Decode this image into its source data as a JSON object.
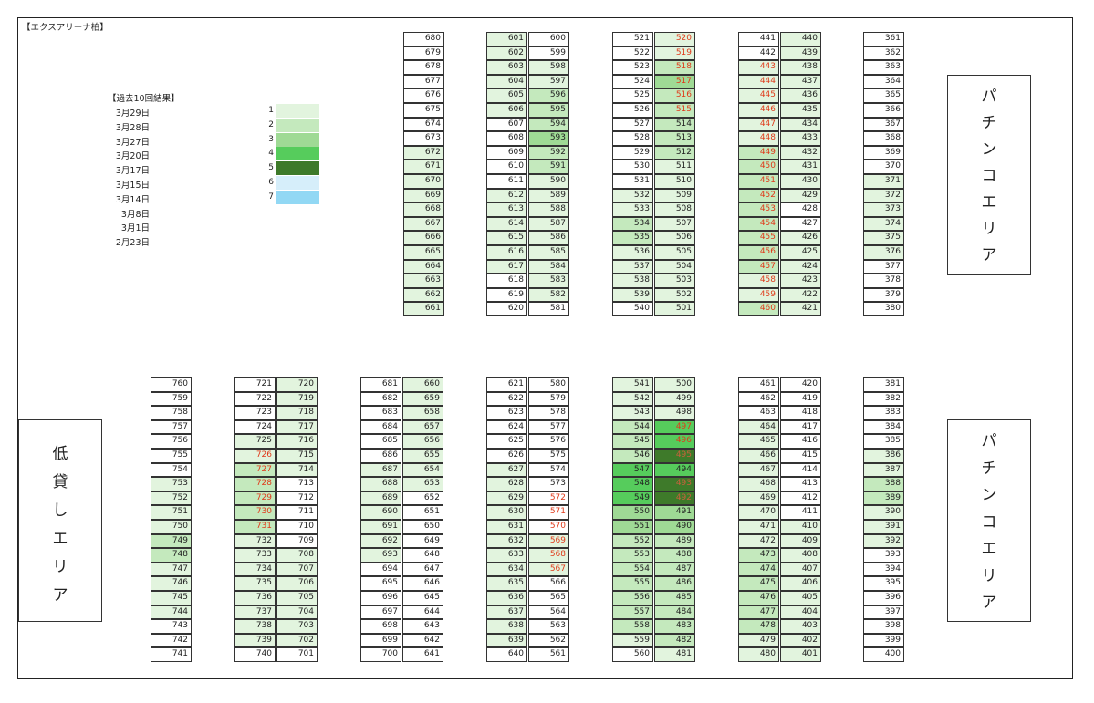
{
  "title": "【エクスアリーナ柏】",
  "legend": {
    "title": "【過去10回結果】",
    "dates": [
      "3月29日",
      "3月28日",
      "3月27日",
      "3月20日",
      "3月17日",
      "3月15日",
      "3月14日",
      "3月8日",
      "3月1日",
      "2月23日"
    ],
    "levels": [
      {
        "num": "1",
        "color": "#e2f4de"
      },
      {
        "num": "2",
        "color": "#c4e9bd"
      },
      {
        "num": "3",
        "color": "#9fda95"
      },
      {
        "num": "4",
        "color": "#56cc5c"
      },
      {
        "num": "5",
        "color": "#3e7a2a"
      },
      {
        "num": "6",
        "color": "#d6eefa"
      },
      {
        "num": "7",
        "color": "#92d8f4"
      }
    ]
  },
  "areas": {
    "pachinko_label": [
      "パ",
      "チ",
      "ン",
      "コ",
      "エ",
      "リ",
      "ア"
    ],
    "lowrent_label": [
      "低",
      "貸",
      "し",
      "エ",
      "リ",
      "ア"
    ]
  },
  "colors": {
    "1": "#e2f4de",
    "2": "#c4e9bd",
    "3": "#9fda95",
    "4": "#56cc5c",
    "5": "#3e7a2a",
    "6": "#d6eefa",
    "7": "#92d8f4"
  },
  "columns": [
    {
      "start": 680,
      "step": -1,
      "count": 20,
      "shade": [
        0,
        0,
        0,
        0,
        0,
        0,
        0,
        0,
        1,
        1,
        1,
        1,
        1,
        1,
        1,
        1,
        1,
        1,
        1,
        1
      ],
      "red": []
    },
    {
      "start": 601,
      "step": 1,
      "count": 20,
      "shade": [
        1,
        1,
        1,
        1,
        1,
        1,
        0,
        0,
        0,
        0,
        0,
        1,
        1,
        1,
        1,
        1,
        1,
        0,
        0,
        0
      ],
      "red": []
    },
    {
      "start": 600,
      "step": -1,
      "count": 20,
      "shade": [
        0,
        0,
        1,
        1,
        2,
        2,
        2,
        3,
        2,
        2,
        1,
        1,
        1,
        1,
        1,
        1,
        1,
        1,
        1,
        0
      ],
      "red": []
    },
    {
      "start": 521,
      "step": 1,
      "count": 20,
      "shade": [
        0,
        0,
        0,
        0,
        0,
        0,
        0,
        0,
        0,
        0,
        0,
        1,
        1,
        2,
        2,
        1,
        1,
        1,
        1,
        0
      ],
      "red": []
    },
    {
      "start": 520,
      "step": -1,
      "count": 20,
      "shade": [
        1,
        1,
        2,
        3,
        2,
        2,
        2,
        2,
        2,
        1,
        1,
        1,
        1,
        1,
        1,
        1,
        1,
        1,
        1,
        1
      ],
      "red": [
        0,
        1,
        2,
        3,
        4,
        5
      ]
    },
    {
      "start": 441,
      "step": 1,
      "count": 20,
      "shade": [
        0,
        0,
        1,
        1,
        1,
        1,
        1,
        1,
        2,
        2,
        2,
        2,
        2,
        2,
        2,
        2,
        2,
        1,
        1,
        2
      ],
      "red": [
        2,
        3,
        4,
        5,
        6,
        7,
        8,
        9,
        10,
        11,
        12,
        13,
        14,
        15,
        16,
        17,
        18,
        19
      ]
    },
    {
      "start": 440,
      "step": -1,
      "count": 20,
      "shade": [
        1,
        1,
        1,
        1,
        1,
        1,
        1,
        1,
        1,
        1,
        1,
        1,
        0,
        0,
        1,
        1,
        1,
        1,
        1,
        1
      ],
      "red": []
    },
    {
      "start": 361,
      "step": 1,
      "count": 20,
      "shade": [
        0,
        0,
        0,
        0,
        0,
        0,
        0,
        0,
        0,
        0,
        1,
        1,
        1,
        1,
        1,
        1,
        0,
        0,
        0,
        0
      ],
      "red": []
    },
    {
      "start": 760,
      "step": -1,
      "count": 20,
      "shade": [
        0,
        0,
        0,
        0,
        0,
        0,
        0,
        1,
        1,
        1,
        1,
        2,
        2,
        1,
        1,
        1,
        1,
        0,
        0,
        0
      ],
      "red": []
    },
    {
      "start": 721,
      "step": 1,
      "count": 20,
      "shade": [
        0,
        0,
        0,
        0,
        1,
        1,
        2,
        2,
        2,
        2,
        2,
        1,
        1,
        1,
        1,
        1,
        1,
        1,
        1,
        0
      ],
      "red": [
        5,
        6,
        7,
        8,
        9,
        10
      ]
    },
    {
      "start": 720,
      "step": -1,
      "count": 20,
      "shade": [
        1,
        1,
        1,
        1,
        1,
        1,
        1,
        0,
        0,
        0,
        0,
        0,
        1,
        1,
        1,
        1,
        1,
        1,
        1,
        0
      ],
      "red": []
    },
    {
      "start": 681,
      "step": 1,
      "count": 20,
      "shade": [
        0,
        0,
        0,
        0,
        0,
        0,
        1,
        1,
        1,
        1,
        1,
        1,
        1,
        0,
        0,
        0,
        0,
        0,
        0,
        0
      ],
      "red": []
    },
    {
      "start": 660,
      "step": -1,
      "count": 20,
      "shade": [
        1,
        1,
        1,
        1,
        1,
        1,
        1,
        1,
        0,
        0,
        0,
        0,
        0,
        0,
        0,
        0,
        0,
        0,
        0,
        0
      ],
      "red": []
    },
    {
      "start": 621,
      "step": 1,
      "count": 20,
      "shade": [
        0,
        0,
        0,
        0,
        0,
        0,
        1,
        1,
        1,
        1,
        1,
        1,
        1,
        1,
        1,
        1,
        1,
        1,
        1,
        0
      ],
      "red": []
    },
    {
      "start": 580,
      "step": -1,
      "count": 20,
      "shade": [
        0,
        0,
        0,
        0,
        0,
        0,
        0,
        0,
        0,
        0,
        0,
        1,
        1,
        1,
        0,
        0,
        0,
        0,
        0,
        0
      ],
      "red": [
        8,
        9,
        10,
        11,
        12,
        13
      ]
    },
    {
      "start": 541,
      "step": 1,
      "count": 20,
      "shade": [
        1,
        1,
        1,
        2,
        2,
        2,
        4,
        4,
        4,
        3,
        3,
        2,
        2,
        2,
        2,
        2,
        2,
        2,
        1,
        0
      ],
      "red": []
    },
    {
      "start": 500,
      "step": -1,
      "count": 20,
      "shade": [
        1,
        1,
        1,
        4,
        4,
        5,
        4,
        5,
        5,
        3,
        3,
        2,
        2,
        2,
        2,
        2,
        2,
        2,
        2,
        1
      ],
      "red": [
        3,
        4,
        5,
        7,
        8
      ]
    },
    {
      "start": 461,
      "step": 1,
      "count": 20,
      "shade": [
        0,
        0,
        0,
        1,
        1,
        1,
        1,
        1,
        1,
        1,
        1,
        1,
        2,
        2,
        2,
        2,
        2,
        2,
        1,
        1
      ],
      "red": []
    },
    {
      "start": 420,
      "step": -1,
      "count": 20,
      "shade": [
        0,
        0,
        0,
        0,
        0,
        0,
        0,
        0,
        0,
        0,
        1,
        1,
        1,
        1,
        1,
        1,
        1,
        1,
        1,
        1
      ],
      "red": []
    },
    {
      "start": 381,
      "step": 1,
      "count": 20,
      "shade": [
        0,
        0,
        0,
        0,
        0,
        1,
        1,
        2,
        2,
        1,
        1,
        1,
        0,
        0,
        0,
        0,
        0,
        0,
        0,
        0
      ],
      "red": []
    }
  ]
}
